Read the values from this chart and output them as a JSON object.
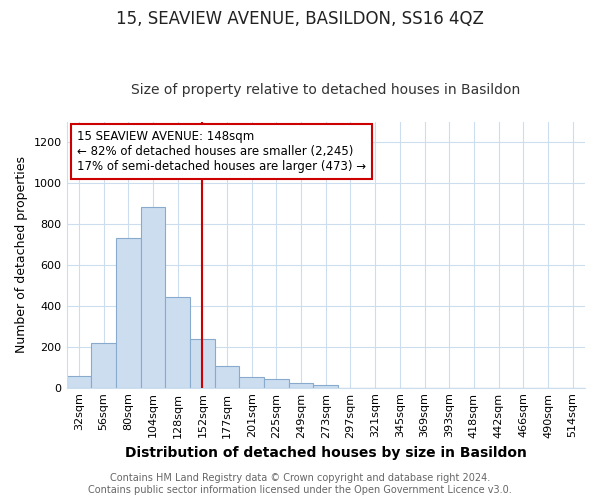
{
  "title": "15, SEAVIEW AVENUE, BASILDON, SS16 4QZ",
  "subtitle": "Size of property relative to detached houses in Basildon",
  "xlabel": "Distribution of detached houses by size in Basildon",
  "ylabel": "Number of detached properties",
  "bar_labels": [
    "32sqm",
    "56sqm",
    "80sqm",
    "104sqm",
    "128sqm",
    "152sqm",
    "177sqm",
    "201sqm",
    "225sqm",
    "249sqm",
    "273sqm",
    "297sqm",
    "321sqm",
    "345sqm",
    "369sqm",
    "393sqm",
    "418sqm",
    "442sqm",
    "466sqm",
    "490sqm",
    "514sqm"
  ],
  "bar_heights": [
    55,
    220,
    730,
    885,
    445,
    240,
    108,
    50,
    40,
    22,
    15,
    0,
    0,
    0,
    0,
    0,
    0,
    0,
    0,
    0,
    0
  ],
  "bar_color": "#ccddf0",
  "bar_edgecolor": "#88aacc",
  "property_line_x": 5.0,
  "property_line_color": "#cc0000",
  "annotation_text": "15 SEAVIEW AVENUE: 148sqm\n← 82% of detached houses are smaller (2,245)\n17% of semi-detached houses are larger (473) →",
  "annotation_box_color": "#ffffff",
  "annotation_box_edgecolor": "#cc0000",
  "ylim": [
    0,
    1300
  ],
  "yticks": [
    0,
    200,
    400,
    600,
    800,
    1000,
    1200
  ],
  "background_color": "#ffffff",
  "plot_bg_color": "#ffffff",
  "grid_color": "#ccddee",
  "footer_line1": "Contains HM Land Registry data © Crown copyright and database right 2024.",
  "footer_line2": "Contains public sector information licensed under the Open Government Licence v3.0.",
  "title_fontsize": 12,
  "subtitle_fontsize": 10,
  "xlabel_fontsize": 10,
  "ylabel_fontsize": 9,
  "tick_fontsize": 8,
  "annotation_fontsize": 8.5,
  "footer_fontsize": 7
}
